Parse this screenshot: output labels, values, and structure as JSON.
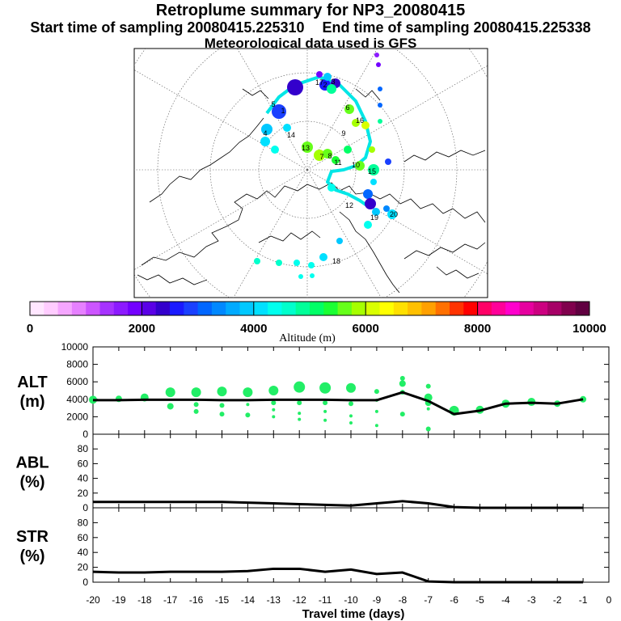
{
  "header": {
    "title": "Retroplume summary for NP3_20080415",
    "start_label": "Start time of sampling 20080415.225310",
    "end_label": "End time of sampling 20080415.225338",
    "met_label": "Meteorological data used is GFS"
  },
  "colorbar": {
    "tick_labels": [
      "0",
      "2000",
      "4000",
      "6000",
      "8000",
      "10000"
    ],
    "title": "Altitude (m)",
    "colors": [
      "#ffe6ff",
      "#ffccff",
      "#f5a6ff",
      "#e680ff",
      "#cc55ff",
      "#a633ff",
      "#8c1aff",
      "#7300ff",
      "#5a00e6",
      "#3300cc",
      "#1a1aff",
      "#1a40ff",
      "#0066ff",
      "#0088ff",
      "#00aaff",
      "#00c8ff",
      "#00e0ff",
      "#00ffee",
      "#00ffcc",
      "#00ff99",
      "#00ff66",
      "#1aff33",
      "#66ff1a",
      "#a6ff00",
      "#d9ff00",
      "#ffff00",
      "#ffe000",
      "#ffc000",
      "#ffa000",
      "#ff7000",
      "#ff3300",
      "#ff0000",
      "#ff0066",
      "#ff0099",
      "#ff00cc",
      "#e6009f",
      "#cc0080",
      "#a60066",
      "#80004d",
      "#600040"
    ]
  },
  "map": {
    "trajectory_color": "#00e6e6",
    "labels": [
      "1",
      "2",
      "3",
      "4",
      "5",
      "6",
      "7",
      "8",
      "9",
      "10",
      "11",
      "12",
      "13",
      "14",
      "15",
      "16",
      "17",
      "18",
      "19",
      "20"
    ]
  },
  "chart_data": [
    {
      "type": "scatter",
      "name": "ALT",
      "ylabel": "ALT\n(m)",
      "ylim": [
        0,
        10000
      ],
      "yticks": [
        "0",
        "2000",
        "4000",
        "6000",
        "8000",
        "10000"
      ],
      "marker_color": "#22ee66",
      "line": {
        "x": [
          -20,
          -19,
          -18,
          -17,
          -16,
          -15,
          -14,
          -13,
          -12,
          -11,
          -10,
          -9,
          -8,
          -7,
          -6,
          -5,
          -4,
          -3,
          -2,
          -1
        ],
        "y": [
          3900,
          3900,
          3950,
          3950,
          3950,
          3900,
          3900,
          3950,
          3950,
          3950,
          3900,
          3900,
          4800,
          3800,
          2300,
          2700,
          3500,
          3600,
          3500,
          4000
        ]
      },
      "points": [
        {
          "x": -20,
          "y": 3950,
          "r": 5
        },
        {
          "x": -19,
          "y": 4050,
          "r": 4
        },
        {
          "x": -18,
          "y": 4200,
          "r": 5
        },
        {
          "x": -17,
          "y": 4800,
          "r": 6
        },
        {
          "x": -17,
          "y": 3200,
          "r": 4
        },
        {
          "x": -16,
          "y": 4800,
          "r": 6
        },
        {
          "x": -16,
          "y": 3400,
          "r": 3
        },
        {
          "x": -16,
          "y": 2600,
          "r": 3
        },
        {
          "x": -15,
          "y": 4900,
          "r": 6
        },
        {
          "x": -15,
          "y": 3300,
          "r": 3
        },
        {
          "x": -15,
          "y": 2300,
          "r": 3
        },
        {
          "x": -14,
          "y": 4800,
          "r": 6
        },
        {
          "x": -14,
          "y": 3400,
          "r": 2
        },
        {
          "x": -14,
          "y": 2200,
          "r": 3
        },
        {
          "x": -13,
          "y": 5000,
          "r": 6
        },
        {
          "x": -13,
          "y": 3600,
          "r": 3
        },
        {
          "x": -13,
          "y": 2800,
          "r": 2
        },
        {
          "x": -13,
          "y": 2000,
          "r": 2
        },
        {
          "x": -12,
          "y": 5400,
          "r": 7
        },
        {
          "x": -12,
          "y": 3600,
          "r": 3
        },
        {
          "x": -12,
          "y": 2400,
          "r": 2
        },
        {
          "x": -12,
          "y": 1700,
          "r": 2
        },
        {
          "x": -11,
          "y": 5300,
          "r": 7
        },
        {
          "x": -11,
          "y": 3600,
          "r": 3
        },
        {
          "x": -11,
          "y": 2600,
          "r": 2
        },
        {
          "x": -11,
          "y": 1600,
          "r": 2
        },
        {
          "x": -10,
          "y": 5300,
          "r": 6
        },
        {
          "x": -10,
          "y": 3500,
          "r": 3
        },
        {
          "x": -10,
          "y": 2100,
          "r": 2
        },
        {
          "x": -10,
          "y": 1300,
          "r": 2
        },
        {
          "x": -9,
          "y": 4900,
          "r": 3
        },
        {
          "x": -9,
          "y": 3900,
          "r": 2
        },
        {
          "x": -9,
          "y": 2600,
          "r": 2
        },
        {
          "x": -9,
          "y": 1000,
          "r": 2
        },
        {
          "x": -8,
          "y": 6400,
          "r": 3
        },
        {
          "x": -8,
          "y": 5800,
          "r": 4
        },
        {
          "x": -8,
          "y": 4800,
          "r": 3
        },
        {
          "x": -8,
          "y": 2300,
          "r": 3
        },
        {
          "x": -7,
          "y": 5500,
          "r": 3
        },
        {
          "x": -7,
          "y": 4200,
          "r": 5
        },
        {
          "x": -7,
          "y": 3600,
          "r": 4
        },
        {
          "x": -7,
          "y": 2900,
          "r": 2
        },
        {
          "x": -7,
          "y": 600,
          "r": 3
        },
        {
          "x": -6,
          "y": 2700,
          "r": 6
        },
        {
          "x": -5,
          "y": 2800,
          "r": 5
        },
        {
          "x": -4,
          "y": 3500,
          "r": 5
        },
        {
          "x": -3,
          "y": 3700,
          "r": 5
        },
        {
          "x": -2,
          "y": 3500,
          "r": 4
        },
        {
          "x": -1,
          "y": 4000,
          "r": 4
        }
      ]
    },
    {
      "type": "line",
      "name": "ABL",
      "ylabel": "ABL\n(%)",
      "ylim": [
        0,
        100
      ],
      "yticks": [
        "0",
        "20",
        "40",
        "60",
        "80"
      ],
      "x": [
        -20,
        -19,
        -18,
        -17,
        -16,
        -15,
        -14,
        -13,
        -12,
        -11,
        -10,
        -9,
        -8,
        -7,
        -6,
        -5,
        -4,
        -3,
        -2,
        -1
      ],
      "y": [
        8,
        8,
        8,
        8,
        8,
        8,
        7,
        6,
        5,
        4,
        3,
        6,
        9,
        6,
        1,
        0,
        0,
        0,
        0,
        0
      ]
    },
    {
      "type": "line",
      "name": "STR",
      "ylabel": "STR\n(%)",
      "ylim": [
        0,
        100
      ],
      "yticks": [
        "0",
        "20",
        "40",
        "60",
        "80"
      ],
      "x": [
        -20,
        -19,
        -18,
        -17,
        -16,
        -15,
        -14,
        -13,
        -12,
        -11,
        -10,
        -9,
        -8,
        -7,
        -6,
        -5,
        -4,
        -3,
        -2,
        -1
      ],
      "y": [
        14,
        13,
        13,
        14,
        14,
        14,
        15,
        18,
        18,
        14,
        17,
        11,
        13,
        1,
        0,
        0,
        0,
        0,
        0,
        0
      ]
    }
  ],
  "xaxis": {
    "label": "Travel time (days)",
    "ticks": [
      "-20",
      "-19",
      "-18",
      "-17",
      "-16",
      "-15",
      "-14",
      "-13",
      "-12",
      "-11",
      "-10",
      "-9",
      "-8",
      "-7",
      "-6",
      "-5",
      "-4",
      "-3",
      "-2",
      "-1",
      "0"
    ]
  }
}
